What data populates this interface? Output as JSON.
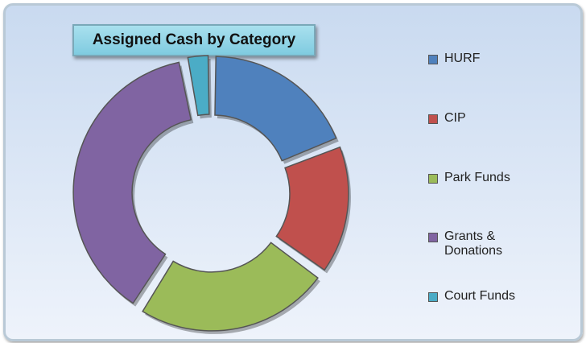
{
  "chart_data": {
    "type": "donut",
    "title": "Assigned Cash by Category",
    "categories": [
      "HURF",
      "CIP",
      "Park Funds",
      "Grants & Donations",
      "Court Funds"
    ],
    "values": [
      19,
      16,
      24,
      38,
      3
    ],
    "colors": [
      "#4f81bd",
      "#c0504d",
      "#9bbb59",
      "#8064a2",
      "#4bacc6"
    ],
    "legend": "right"
  }
}
